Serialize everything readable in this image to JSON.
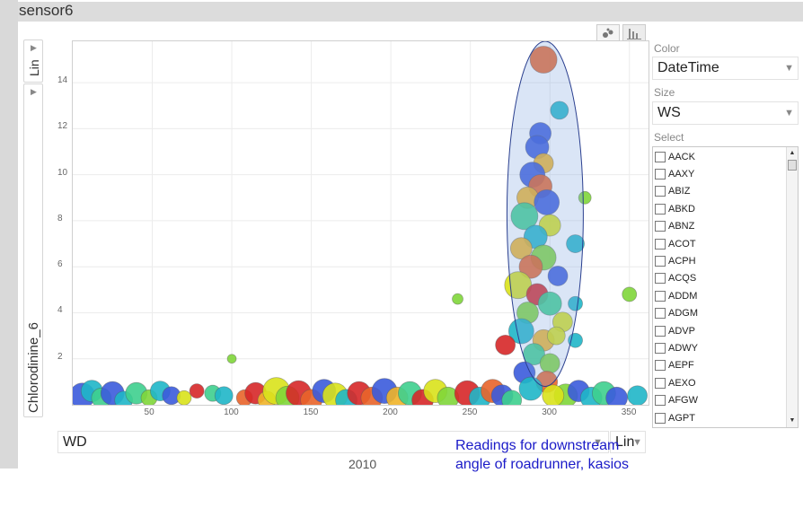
{
  "window": {
    "title": "sensor6"
  },
  "y_axis": {
    "scale_label": "Lin",
    "field": "Chlorodinine_6"
  },
  "x_axis": {
    "field": "WD",
    "scale_label": "Lin"
  },
  "controls": {
    "color_label": "Color",
    "color_value": "DateTime",
    "size_label": "Size",
    "size_value": "WS",
    "select_label": "Select",
    "select_items": [
      "AACK",
      "AAXY",
      "ABIZ",
      "ABKD",
      "ABNZ",
      "ACOT",
      "ACPH",
      "ACQS",
      "ADDM",
      "ADGM",
      "ADVP",
      "ADWY",
      "AEPF",
      "AEXO",
      "AFGW",
      "AGPT"
    ]
  },
  "annotation": "Readings for downstream angle of roadrunner,  kasios",
  "footer_year": "2010",
  "icons": {
    "scatter_button": "scatter-icon",
    "bar_button": "bar-chart-icon",
    "dropdown": "chevron-down-icon"
  },
  "colors": [
    "#3b5bdb",
    "#1fb6c8",
    "#3ecf8e",
    "#7fd63a",
    "#d9e21b",
    "#f0b429",
    "#e8642a",
    "#d62728"
  ],
  "chart_data": {
    "type": "scatter",
    "title": "",
    "xlabel": "WD",
    "ylabel": "Chlorodinine_6",
    "x_ticks": [
      "50",
      "100",
      "150",
      "200",
      "250",
      "300",
      "350"
    ],
    "y_ticks": [
      "2",
      "4",
      "6",
      "8",
      "10",
      "12",
      "14"
    ],
    "xlim": [
      0,
      362
    ],
    "ylim": [
      0,
      15.8
    ],
    "highlight_ellipse": {
      "cx": 297,
      "cy": 8.3,
      "rx": 24,
      "ry": 7.5
    },
    "points": [
      {
        "x": 6,
        "y": 0.4,
        "s": 14,
        "c": 0
      },
      {
        "x": 12,
        "y": 0.6,
        "s": 12,
        "c": 1
      },
      {
        "x": 18,
        "y": 0.3,
        "s": 11,
        "c": 2
      },
      {
        "x": 25,
        "y": 0.5,
        "s": 13,
        "c": 0
      },
      {
        "x": 32,
        "y": 0.2,
        "s": 10,
        "c": 1
      },
      {
        "x": 40,
        "y": 0.5,
        "s": 12,
        "c": 2
      },
      {
        "x": 48,
        "y": 0.3,
        "s": 9,
        "c": 3
      },
      {
        "x": 55,
        "y": 0.6,
        "s": 11,
        "c": 1
      },
      {
        "x": 62,
        "y": 0.4,
        "s": 10,
        "c": 0
      },
      {
        "x": 70,
        "y": 0.3,
        "s": 8,
        "c": 4
      },
      {
        "x": 78,
        "y": 0.6,
        "s": 8,
        "c": 7
      },
      {
        "x": 88,
        "y": 0.5,
        "s": 9,
        "c": 2
      },
      {
        "x": 95,
        "y": 0.4,
        "s": 10,
        "c": 1
      },
      {
        "x": 100,
        "y": 2.0,
        "s": 5,
        "c": 3
      },
      {
        "x": 108,
        "y": 0.3,
        "s": 9,
        "c": 6
      },
      {
        "x": 115,
        "y": 0.5,
        "s": 12,
        "c": 7
      },
      {
        "x": 122,
        "y": 0.2,
        "s": 10,
        "c": 5
      },
      {
        "x": 128,
        "y": 0.6,
        "s": 15,
        "c": 4
      },
      {
        "x": 135,
        "y": 0.3,
        "s": 13,
        "c": 3
      },
      {
        "x": 142,
        "y": 0.5,
        "s": 14,
        "c": 7
      },
      {
        "x": 150,
        "y": 0.2,
        "s": 12,
        "c": 6
      },
      {
        "x": 158,
        "y": 0.6,
        "s": 13,
        "c": 0
      },
      {
        "x": 165,
        "y": 0.4,
        "s": 14,
        "c": 4
      },
      {
        "x": 172,
        "y": 0.2,
        "s": 12,
        "c": 1
      },
      {
        "x": 180,
        "y": 0.5,
        "s": 13,
        "c": 7
      },
      {
        "x": 188,
        "y": 0.3,
        "s": 12,
        "c": 6
      },
      {
        "x": 196,
        "y": 0.6,
        "s": 14,
        "c": 0
      },
      {
        "x": 204,
        "y": 0.3,
        "s": 12,
        "c": 5
      },
      {
        "x": 212,
        "y": 0.5,
        "s": 13,
        "c": 2
      },
      {
        "x": 220,
        "y": 0.2,
        "s": 12,
        "c": 7
      },
      {
        "x": 228,
        "y": 0.6,
        "s": 13,
        "c": 4
      },
      {
        "x": 236,
        "y": 0.3,
        "s": 12,
        "c": 3
      },
      {
        "x": 242,
        "y": 4.6,
        "s": 6,
        "c": 3
      },
      {
        "x": 248,
        "y": 0.5,
        "s": 14,
        "c": 7
      },
      {
        "x": 256,
        "y": 0.3,
        "s": 12,
        "c": 1
      },
      {
        "x": 264,
        "y": 0.6,
        "s": 13,
        "c": 6
      },
      {
        "x": 270,
        "y": 0.4,
        "s": 12,
        "c": 0
      },
      {
        "x": 276,
        "y": 0.2,
        "s": 11,
        "c": 2
      },
      {
        "x": 310,
        "y": 0.4,
        "s": 13,
        "c": 3
      },
      {
        "x": 318,
        "y": 0.6,
        "s": 12,
        "c": 0
      },
      {
        "x": 326,
        "y": 0.3,
        "s": 12,
        "c": 1
      },
      {
        "x": 334,
        "y": 0.5,
        "s": 13,
        "c": 2
      },
      {
        "x": 342,
        "y": 0.3,
        "s": 12,
        "c": 0
      },
      {
        "x": 350,
        "y": 4.8,
        "s": 8,
        "c": 3
      },
      {
        "x": 355,
        "y": 0.4,
        "s": 11,
        "c": 1
      },
      {
        "x": 322,
        "y": 9.0,
        "s": 7,
        "c": 3
      },
      {
        "x": 306,
        "y": 12.8,
        "s": 10,
        "c": 1
      },
      {
        "x": 296,
        "y": 15.0,
        "s": 15,
        "c": 6
      },
      {
        "x": 294,
        "y": 11.8,
        "s": 12,
        "c": 0
      },
      {
        "x": 292,
        "y": 11.2,
        "s": 13,
        "c": 0
      },
      {
        "x": 296,
        "y": 10.5,
        "s": 11,
        "c": 5
      },
      {
        "x": 289,
        "y": 10.0,
        "s": 14,
        "c": 0
      },
      {
        "x": 294,
        "y": 9.5,
        "s": 13,
        "c": 6
      },
      {
        "x": 286,
        "y": 9.0,
        "s": 12,
        "c": 5
      },
      {
        "x": 298,
        "y": 8.8,
        "s": 14,
        "c": 0
      },
      {
        "x": 284,
        "y": 8.2,
        "s": 15,
        "c": 2
      },
      {
        "x": 300,
        "y": 7.8,
        "s": 12,
        "c": 4
      },
      {
        "x": 291,
        "y": 7.3,
        "s": 13,
        "c": 1
      },
      {
        "x": 316,
        "y": 7.0,
        "s": 10,
        "c": 1
      },
      {
        "x": 282,
        "y": 6.8,
        "s": 12,
        "c": 5
      },
      {
        "x": 296,
        "y": 6.4,
        "s": 14,
        "c": 3
      },
      {
        "x": 288,
        "y": 6.0,
        "s": 13,
        "c": 6
      },
      {
        "x": 305,
        "y": 5.6,
        "s": 11,
        "c": 0
      },
      {
        "x": 280,
        "y": 5.2,
        "s": 15,
        "c": 4
      },
      {
        "x": 292,
        "y": 4.8,
        "s": 12,
        "c": 7
      },
      {
        "x": 300,
        "y": 4.4,
        "s": 13,
        "c": 2
      },
      {
        "x": 286,
        "y": 4.0,
        "s": 12,
        "c": 3
      },
      {
        "x": 308,
        "y": 3.6,
        "s": 11,
        "c": 4
      },
      {
        "x": 282,
        "y": 3.2,
        "s": 14,
        "c": 1
      },
      {
        "x": 296,
        "y": 2.8,
        "s": 12,
        "c": 5
      },
      {
        "x": 272,
        "y": 2.6,
        "s": 11,
        "c": 7
      },
      {
        "x": 316,
        "y": 2.8,
        "s": 8,
        "c": 1
      },
      {
        "x": 290,
        "y": 2.2,
        "s": 12,
        "c": 2
      },
      {
        "x": 300,
        "y": 1.8,
        "s": 11,
        "c": 3
      },
      {
        "x": 284,
        "y": 1.4,
        "s": 12,
        "c": 0
      },
      {
        "x": 298,
        "y": 1.0,
        "s": 12,
        "c": 6
      },
      {
        "x": 288,
        "y": 0.7,
        "s": 13,
        "c": 1
      },
      {
        "x": 302,
        "y": 0.4,
        "s": 12,
        "c": 4
      },
      {
        "x": 316,
        "y": 4.4,
        "s": 8,
        "c": 1
      },
      {
        "x": 304,
        "y": 3.0,
        "s": 10,
        "c": 4
      }
    ]
  }
}
